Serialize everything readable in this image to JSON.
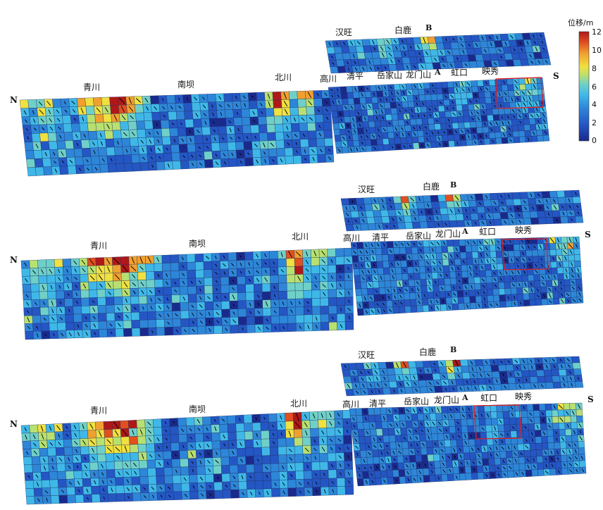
{
  "colorbar": {
    "title": "位移/m",
    "ticks": [
      "12",
      "10",
      "8",
      "6",
      "4",
      "2",
      "0"
    ],
    "range": [
      0,
      12
    ],
    "colors": [
      "#1a2a8c",
      "#2456c4",
      "#2e86d8",
      "#3fb8e8",
      "#6fd0c8",
      "#b8e070",
      "#f0e040",
      "#f0a030",
      "#e05020",
      "#b01818"
    ]
  },
  "direction_labels": {
    "north": "N",
    "south": "S"
  },
  "panels": [
    {
      "north_segment_places": [
        "青川",
        "南坝",
        "北川"
      ],
      "south_lower_places": [
        "高川",
        "清平",
        "岳家山",
        "龙门山",
        "A",
        "虹口",
        "映秀"
      ],
      "south_upper_places": [
        "汉旺",
        "白鹿",
        "B"
      ]
    },
    {
      "north_segment_places": [
        "青川",
        "南坝",
        "北川"
      ],
      "south_lower_places": [
        "高川",
        "清平",
        "岳家山",
        "龙门山",
        "A",
        "虹口",
        "映秀"
      ],
      "south_upper_places": [
        "汉旺",
        "白鹿",
        "B"
      ]
    },
    {
      "north_segment_places": [
        "青川",
        "南坝",
        "北川"
      ],
      "south_lower_places": [
        "高川",
        "清平",
        "岳家山",
        "龙门山",
        "A",
        "虹口",
        "映秀"
      ],
      "south_upper_places": [
        "汉旺",
        "白鹿",
        "B"
      ]
    }
  ]
}
